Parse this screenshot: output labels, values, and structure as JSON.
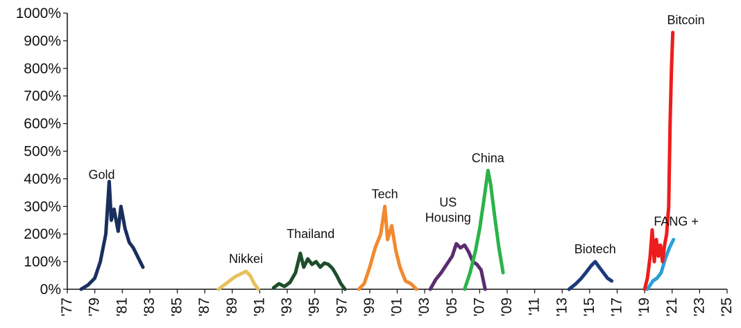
{
  "chart_data": {
    "type": "line",
    "xlim": [
      1977,
      2025
    ],
    "ylim": [
      0,
      1000
    ],
    "y_ticks": [
      "0%",
      "100%",
      "200%",
      "300%",
      "400%",
      "500%",
      "600%",
      "700%",
      "800%",
      "900%",
      "1000%"
    ],
    "x_ticks": [
      "'77",
      "'79",
      "'81",
      "'83",
      "'85",
      "'87",
      "'89",
      "'91",
      "'93",
      "'95",
      "'97",
      "'99",
      "'01",
      "'03",
      "'05",
      "'07",
      "'09",
      "'11",
      "'13",
      "'15",
      "'17",
      "'19",
      "'21",
      "'23",
      "'25"
    ],
    "grid": false,
    "series": [
      {
        "name": "Gold",
        "color": "#1a2f5e",
        "label_lines": [
          "Gold"
        ],
        "x": [
          1978.0,
          1978.5,
          1979.0,
          1979.4,
          1979.8,
          1980.05,
          1980.2,
          1980.4,
          1980.7,
          1980.9,
          1981.2,
          1981.5,
          1981.8,
          1982.0,
          1982.3,
          1982.5
        ],
        "y": [
          0,
          15,
          40,
          100,
          200,
          390,
          250,
          290,
          210,
          300,
          220,
          170,
          150,
          130,
          100,
          80
        ]
      },
      {
        "name": "Nikkei",
        "color": "#e6c15a",
        "label_lines": [
          "Nikkei"
        ],
        "x": [
          1988.0,
          1988.4,
          1988.8,
          1989.2,
          1989.6,
          1990.0,
          1990.3,
          1990.6,
          1990.9
        ],
        "y": [
          0,
          15,
          30,
          45,
          55,
          65,
          50,
          20,
          0
        ]
      },
      {
        "name": "Thailand",
        "color": "#1e4d2b",
        "label_lines": [
          "Thailand"
        ],
        "x": [
          1992.0,
          1992.4,
          1992.8,
          1993.2,
          1993.6,
          1993.95,
          1994.2,
          1994.5,
          1994.8,
          1995.1,
          1995.4,
          1995.7,
          1996.0,
          1996.3,
          1996.6,
          1996.9,
          1997.2
        ],
        "y": [
          5,
          20,
          10,
          25,
          60,
          130,
          80,
          110,
          90,
          100,
          80,
          95,
          90,
          75,
          50,
          20,
          0
        ]
      },
      {
        "name": "Tech",
        "color": "#f2892e",
        "label_lines": [
          "Tech"
        ],
        "x": [
          1998.2,
          1998.6,
          1999.0,
          1999.4,
          1999.8,
          2000.1,
          2000.3,
          2000.6,
          2000.9,
          2001.2,
          2001.6,
          2002.0,
          2002.4
        ],
        "y": [
          0,
          20,
          80,
          150,
          200,
          300,
          180,
          230,
          140,
          80,
          30,
          20,
          0
        ]
      },
      {
        "name": "US Housing",
        "color": "#5b2c6f",
        "label_lines": [
          "US",
          "Housing"
        ],
        "x": [
          2003.4,
          2003.8,
          2004.2,
          2004.6,
          2005.0,
          2005.3,
          2005.6,
          2005.9,
          2006.2,
          2006.5,
          2006.8,
          2007.1,
          2007.4
        ],
        "y": [
          0,
          35,
          60,
          90,
          120,
          165,
          150,
          160,
          135,
          100,
          90,
          70,
          0
        ]
      },
      {
        "name": "China",
        "color": "#2bb34a",
        "label_lines": [
          "China"
        ],
        "x": [
          2005.9,
          2006.3,
          2006.7,
          2007.0,
          2007.3,
          2007.6,
          2007.8,
          2008.1,
          2008.4,
          2008.7
        ],
        "y": [
          0,
          60,
          140,
          220,
          320,
          430,
          380,
          260,
          150,
          60
        ]
      },
      {
        "name": "Biotech",
        "color": "#1a3a7a",
        "label_lines": [
          "Biotech"
        ],
        "x": [
          2013.5,
          2014.0,
          2014.4,
          2014.8,
          2015.1,
          2015.4,
          2015.7,
          2016.0,
          2016.3,
          2016.6
        ],
        "y": [
          0,
          20,
          40,
          65,
          85,
          100,
          80,
          60,
          40,
          30
        ]
      },
      {
        "name": "FANG +",
        "color": "#2a9fd6",
        "label_lines": [
          "FANG +"
        ],
        "x": [
          2019.2,
          2019.6,
          2019.9,
          2020.2,
          2020.5,
          2020.8,
          2021.1
        ],
        "y": [
          0,
          30,
          40,
          60,
          110,
          150,
          180
        ]
      },
      {
        "name": "Bitcoin",
        "color": "#ee1c1c",
        "label_lines": [
          "Bitcoin"
        ],
        "x": [
          2019.0,
          2019.2,
          2019.4,
          2019.55,
          2019.7,
          2019.85,
          2020.0,
          2020.15,
          2020.3,
          2020.45,
          2020.6,
          2020.75,
          2020.85,
          2020.95,
          2021.05
        ],
        "y": [
          0,
          40,
          120,
          215,
          100,
          180,
          120,
          160,
          100,
          160,
          200,
          300,
          600,
          800,
          930
        ]
      }
    ]
  }
}
